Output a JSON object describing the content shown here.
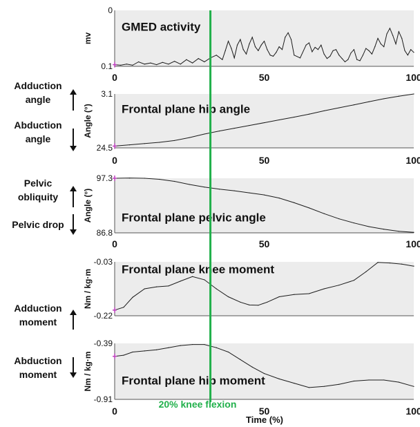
{
  "x_axis_label": "Time (%)",
  "vline_label": "20% knee flexion",
  "vline_x": 32,
  "colors": {
    "panel_bg": "#ececec",
    "trace": "#1a1a1a",
    "vline": "#21b04b",
    "vline_text": "#21b04b",
    "marker": "#c040c0"
  },
  "chart_data": [
    {
      "type": "line",
      "title": "GMED activity",
      "ylabel": "mv",
      "xlim": [
        0,
        100
      ],
      "ylim": [
        0,
        0.1
      ],
      "y_tick_labels": [
        "0",
        "0.1"
      ],
      "x_ticks": [
        0,
        50,
        100
      ],
      "side_labels": [],
      "x": [
        0,
        2,
        4,
        6,
        8,
        10,
        12,
        14,
        16,
        18,
        20,
        22,
        24,
        26,
        28,
        30,
        32,
        34,
        36,
        37,
        38,
        39,
        40,
        41,
        42,
        43,
        44,
        45,
        46,
        47,
        48,
        49,
        50,
        51,
        52,
        53,
        54,
        55,
        56,
        57,
        58,
        59,
        60,
        62,
        64,
        65,
        66,
        67,
        68,
        69,
        70,
        71,
        72,
        73,
        74,
        75,
        76,
        77,
        78,
        79,
        80,
        81,
        82,
        83,
        84,
        85,
        86,
        87,
        88,
        89,
        90,
        91,
        92,
        93,
        94,
        95,
        96,
        97,
        98,
        99,
        100
      ],
      "y": [
        0.003,
        0.002,
        0.004,
        0.002,
        0.008,
        0.004,
        0.006,
        0.003,
        0.007,
        0.004,
        0.009,
        0.004,
        0.012,
        0.006,
        0.014,
        0.008,
        0.015,
        0.02,
        0.012,
        0.028,
        0.045,
        0.032,
        0.015,
        0.038,
        0.048,
        0.03,
        0.022,
        0.04,
        0.052,
        0.035,
        0.028,
        0.038,
        0.045,
        0.03,
        0.02,
        0.018,
        0.025,
        0.035,
        0.03,
        0.052,
        0.06,
        0.048,
        0.02,
        0.015,
        0.038,
        0.042,
        0.026,
        0.034,
        0.03,
        0.038,
        0.022,
        0.014,
        0.018,
        0.028,
        0.03,
        0.02,
        0.014,
        0.008,
        0.012,
        0.024,
        0.03,
        0.012,
        0.01,
        0.02,
        0.032,
        0.028,
        0.022,
        0.035,
        0.05,
        0.04,
        0.035,
        0.058,
        0.068,
        0.055,
        0.04,
        0.062,
        0.05,
        0.028,
        0.02,
        0.03,
        0.025
      ]
    },
    {
      "type": "line",
      "title": "Frontal plane hip angle",
      "ylabel": "Angle (°)",
      "xlim": [
        0,
        100
      ],
      "ylim": [
        3.1,
        24.5
      ],
      "y_tick_labels": [
        "3.1",
        "24.5"
      ],
      "x_ticks": [
        0,
        50,
        100
      ],
      "side_labels": [
        {
          "text": "Adduction\nangle",
          "arrow": "up"
        },
        {
          "text": "Abduction\nangle",
          "arrow": "down"
        }
      ],
      "x": [
        0,
        5,
        10,
        15,
        20,
        25,
        30,
        35,
        40,
        45,
        50,
        55,
        60,
        65,
        70,
        75,
        80,
        85,
        90,
        95,
        100
      ],
      "y": [
        3.8,
        4.3,
        4.8,
        5.3,
        6.0,
        7.2,
        8.6,
        9.8,
        10.9,
        12.0,
        13.1,
        14.2,
        15.3,
        16.5,
        17.8,
        19.0,
        20.2,
        21.4,
        22.6,
        23.6,
        24.5
      ]
    },
    {
      "type": "line",
      "title": "Frontal plane pelvic angle",
      "ylabel": "Angle (°)",
      "xlim": [
        0,
        100
      ],
      "ylim": [
        86.8,
        97.3
      ],
      "y_tick_labels": [
        "97.3",
        "86.8"
      ],
      "x_ticks": [
        0,
        50,
        100
      ],
      "side_labels": [
        {
          "text": "Pelvic\nobliquity",
          "arrow": "up"
        },
        {
          "text": "Pelvic drop",
          "arrow": "down"
        }
      ],
      "x": [
        0,
        5,
        10,
        15,
        20,
        25,
        30,
        35,
        40,
        45,
        50,
        55,
        60,
        65,
        70,
        75,
        80,
        85,
        90,
        95,
        100
      ],
      "y": [
        97.3,
        97.35,
        97.3,
        97.1,
        96.7,
        96.1,
        95.6,
        95.2,
        94.9,
        94.5,
        94.1,
        93.5,
        92.6,
        91.6,
        90.5,
        89.5,
        88.7,
        88.0,
        87.5,
        87.1,
        86.9
      ]
    },
    {
      "type": "line",
      "title": "Frontal plane knee moment",
      "ylabel": "Nm / kg·m",
      "xlim": [
        0,
        100
      ],
      "ylim": [
        -0.22,
        -0.03
      ],
      "y_tick_labels": [
        "-0.03",
        "-0.22"
      ],
      "x_ticks": [],
      "side_labels": [
        {
          "text": "Adduction\nmoment",
          "arrow": "up"
        }
      ],
      "x": [
        0,
        3,
        6,
        10,
        14,
        18,
        22,
        26,
        30,
        34,
        38,
        42,
        45,
        48,
        51,
        55,
        60,
        65,
        70,
        75,
        80,
        84,
        88,
        92,
        96,
        100
      ],
      "y": [
        -0.2,
        -0.19,
        -0.155,
        -0.125,
        -0.118,
        -0.115,
        -0.098,
        -0.082,
        -0.093,
        -0.125,
        -0.153,
        -0.172,
        -0.182,
        -0.183,
        -0.172,
        -0.153,
        -0.145,
        -0.142,
        -0.125,
        -0.112,
        -0.095,
        -0.065,
        -0.032,
        -0.034,
        -0.038,
        -0.045
      ]
    },
    {
      "type": "line",
      "title": "Frontal plane hip moment",
      "ylabel": "Nm / kg·m",
      "xlim": [
        0,
        100
      ],
      "ylim": [
        -0.91,
        -0.39
      ],
      "y_tick_labels": [
        "-0.39",
        "-0.91"
      ],
      "x_ticks": [
        0,
        50,
        100
      ],
      "side_labels": [
        {
          "text": "Abduction\nmoment",
          "arrow": "down"
        }
      ],
      "x": [
        0,
        3,
        6,
        10,
        14,
        18,
        22,
        26,
        30,
        34,
        38,
        42,
        46,
        50,
        55,
        60,
        65,
        70,
        75,
        80,
        85,
        90,
        95,
        100
      ],
      "y": [
        -0.51,
        -0.5,
        -0.47,
        -0.46,
        -0.45,
        -0.43,
        -0.41,
        -0.4,
        -0.4,
        -0.43,
        -0.47,
        -0.54,
        -0.61,
        -0.67,
        -0.72,
        -0.76,
        -0.8,
        -0.79,
        -0.77,
        -0.74,
        -0.73,
        -0.73,
        -0.75,
        -0.79
      ]
    }
  ]
}
